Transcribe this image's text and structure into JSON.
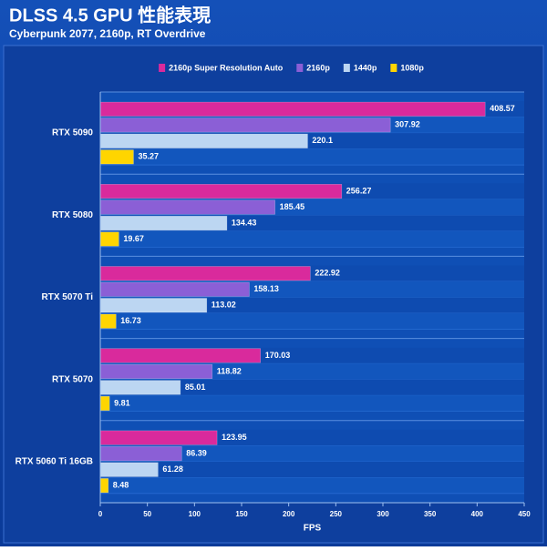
{
  "chart_data": {
    "type": "bar",
    "orientation": "horizontal",
    "title": "DLSS 4.5 GPU 性能表現",
    "subtitle": "Cyberpunk 2077, 2160p, RT Overdrive",
    "x_label": "FPS",
    "categories": [
      "RTX 5090",
      "RTX 5080",
      "RTX 5070 Ti",
      "RTX 5070",
      "RTX 5060 Ti 16GB"
    ],
    "series": [
      {
        "name": "2160p Super Resolution Auto",
        "color": "#d92a9c",
        "values": [
          408.57,
          256.27,
          222.92,
          170.03,
          123.95
        ]
      },
      {
        "name": "2160p",
        "color": "#8b5fd6",
        "values": [
          307.92,
          185.45,
          158.13,
          118.82,
          86.39
        ]
      },
      {
        "name": "1440p",
        "color": "#bcd6f2",
        "values": [
          220.1,
          134.43,
          113.02,
          85.01,
          61.28
        ]
      },
      {
        "name": "1080p",
        "color": "#ffd500",
        "values": [
          35.27,
          19.67,
          16.73,
          9.81,
          8.48
        ]
      }
    ],
    "xlim": [
      0,
      450
    ],
    "xticks": [
      0,
      50,
      100,
      150,
      200,
      250,
      300,
      350,
      400,
      450
    ],
    "legend": "top"
  }
}
